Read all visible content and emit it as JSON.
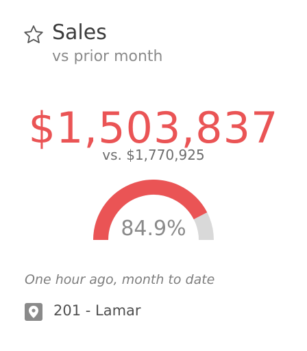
{
  "card": {
    "title": "Sales",
    "subtitle": "vs prior month",
    "value": "$1,503,837",
    "comparison": "vs. $1,770,925",
    "gauge": {
      "percent": 84.9,
      "label": "84.9%",
      "fill_color": "#ea5455",
      "track_color": "#d9d9d9"
    },
    "updated": "One hour ago, month to date",
    "location": "201 - Lamar"
  },
  "icons": {
    "favorite": "star-outline-icon",
    "location": "map-pin-icon"
  },
  "colors": {
    "accent": "#ea5455",
    "title": "#3b3b3b",
    "muted": "#8a8a8a"
  }
}
